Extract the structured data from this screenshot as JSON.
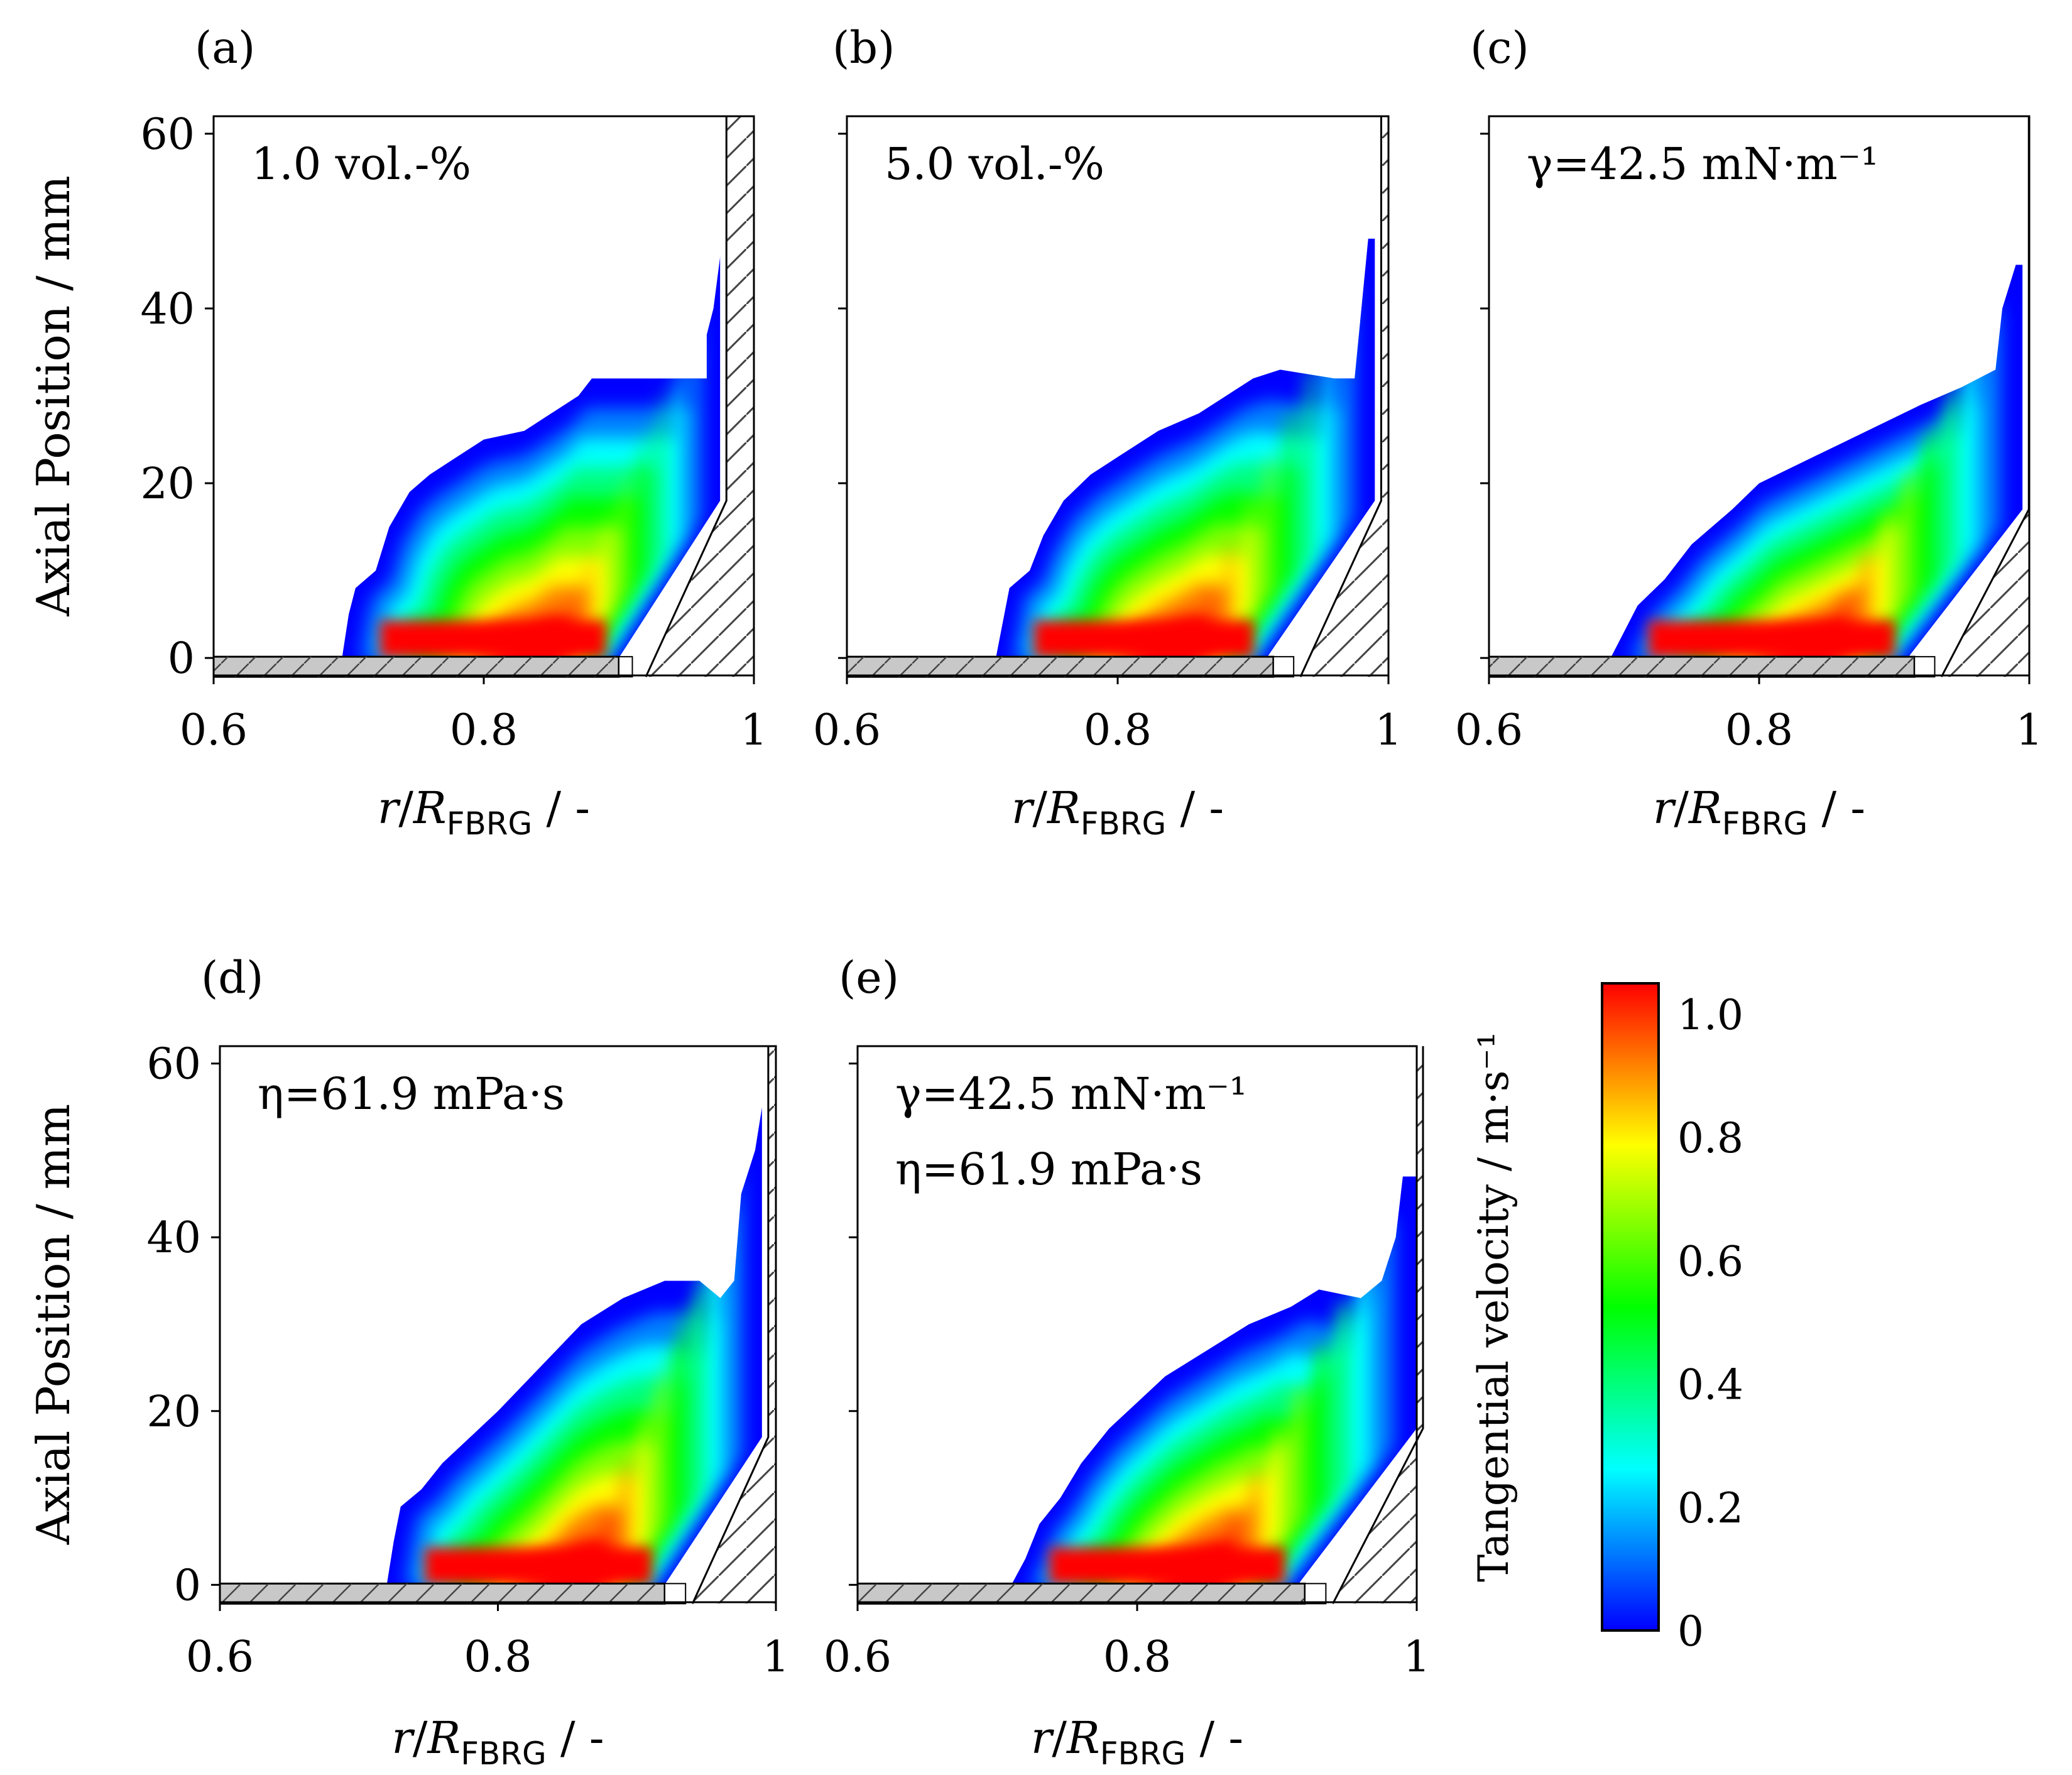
{
  "chart_data": [
    {
      "type": "heatmap",
      "panel_label": "(a)",
      "annotation": [
        "1.0 vol.-%"
      ],
      "ylabel": "Axial Position / mm",
      "xlabel_parts": {
        "italic_main": "r",
        "slash": "/",
        "italic_R": "R",
        "subscript": "FBRG",
        "suffix": " / -"
      },
      "xlim": [
        0.6,
        1.0
      ],
      "ylim": [
        -2,
        62
      ],
      "x_ticks": [
        {
          "v": 0.6,
          "label": "0.6"
        },
        {
          "v": 0.8,
          "label": "0.8"
        },
        {
          "v": 1.0,
          "label": "1"
        }
      ],
      "y_ticks": [
        {
          "v": 0,
          "label": "0"
        },
        {
          "v": 20,
          "label": "20"
        },
        {
          "v": 40,
          "label": "40"
        },
        {
          "v": 60,
          "label": "60"
        }
      ],
      "region": {
        "x_start": 0.695,
        "x_wall": 0.975,
        "bottom_peak_x": 0.9,
        "wall_base_y": 18,
        "top_profile": [
          [
            0.695,
            0
          ],
          [
            0.7,
            5
          ],
          [
            0.705,
            8
          ],
          [
            0.72,
            10
          ],
          [
            0.73,
            15
          ],
          [
            0.745,
            19
          ],
          [
            0.76,
            21
          ],
          [
            0.78,
            23
          ],
          [
            0.8,
            25
          ],
          [
            0.83,
            26
          ],
          [
            0.85,
            28
          ],
          [
            0.87,
            30
          ],
          [
            0.88,
            32
          ],
          [
            0.965,
            32
          ],
          [
            0.965,
            37
          ],
          [
            0.97,
            40
          ],
          [
            0.975,
            46
          ]
        ],
        "core_peak": [
          0.835,
          18
        ]
      },
      "ring_plate": {
        "x_end": 0.9,
        "gap_end": 0.91
      },
      "wall_lower_x": 0.92
    },
    {
      "type": "heatmap",
      "panel_label": "(b)",
      "annotation": [
        "5.0 vol.-%"
      ],
      "ylabel": "",
      "xlabel_parts": {
        "italic_main": "r",
        "slash": "/",
        "italic_R": "R",
        "subscript": "FBRG",
        "suffix": " / -"
      },
      "xlim": [
        0.6,
        1.0
      ],
      "ylim": [
        -2,
        62
      ],
      "x_ticks": [
        {
          "v": 0.6,
          "label": "0.6"
        },
        {
          "v": 0.8,
          "label": "0.8"
        },
        {
          "v": 1.0,
          "label": "1"
        }
      ],
      "y_ticks": [
        {
          "v": 0,
          "label": ""
        },
        {
          "v": 20,
          "label": ""
        },
        {
          "v": 40,
          "label": ""
        },
        {
          "v": 60,
          "label": ""
        }
      ],
      "region": {
        "x_start": 0.71,
        "x_wall": 0.99,
        "bottom_peak_x": 0.91,
        "wall_base_y": 18,
        "top_profile": [
          [
            0.71,
            0
          ],
          [
            0.715,
            4
          ],
          [
            0.72,
            8
          ],
          [
            0.735,
            10
          ],
          [
            0.745,
            14
          ],
          [
            0.76,
            18
          ],
          [
            0.78,
            21
          ],
          [
            0.8,
            23
          ],
          [
            0.83,
            26
          ],
          [
            0.86,
            28
          ],
          [
            0.88,
            30
          ],
          [
            0.9,
            32
          ],
          [
            0.92,
            33
          ],
          [
            0.96,
            32
          ],
          [
            0.975,
            32
          ],
          [
            0.98,
            40
          ],
          [
            0.985,
            48
          ],
          [
            0.99,
            48
          ]
        ],
        "core_peak": [
          0.835,
          18
        ]
      },
      "ring_plate": {
        "x_end": 0.915,
        "gap_end": 0.93
      },
      "wall_lower_x": 0.935
    },
    {
      "type": "heatmap",
      "panel_label": "(c)",
      "annotation": [
        "γ=42.5 mN·m⁻¹"
      ],
      "ylabel": "",
      "xlabel_parts": {
        "italic_main": "r",
        "slash": "/",
        "italic_R": "R",
        "subscript": "FBRG",
        "suffix": " / -"
      },
      "xlim": [
        0.6,
        1.0
      ],
      "ylim": [
        -2,
        62
      ],
      "x_ticks": [
        {
          "v": 0.6,
          "label": "0.6"
        },
        {
          "v": 0.8,
          "label": "0.8"
        },
        {
          "v": 1.0,
          "label": "1"
        }
      ],
      "y_ticks": [
        {
          "v": 0,
          "label": ""
        },
        {
          "v": 20,
          "label": ""
        },
        {
          "v": 40,
          "label": ""
        },
        {
          "v": 60,
          "label": ""
        }
      ],
      "region": {
        "x_start": 0.69,
        "x_wall": 0.995,
        "bottom_peak_x": 0.91,
        "wall_base_y": 17,
        "top_profile": [
          [
            0.69,
            0
          ],
          [
            0.7,
            3
          ],
          [
            0.71,
            6
          ],
          [
            0.73,
            9
          ],
          [
            0.75,
            13
          ],
          [
            0.78,
            17
          ],
          [
            0.8,
            20
          ],
          [
            0.84,
            23
          ],
          [
            0.88,
            26
          ],
          [
            0.92,
            29
          ],
          [
            0.95,
            31
          ],
          [
            0.975,
            33
          ],
          [
            0.98,
            40
          ],
          [
            0.99,
            45
          ],
          [
            0.995,
            45
          ]
        ],
        "core_peak": [
          0.83,
          18
        ]
      },
      "ring_plate": {
        "x_end": 0.915,
        "gap_end": 0.93
      },
      "wall_lower_x": 0.935
    },
    {
      "type": "heatmap",
      "panel_label": "(d)",
      "annotation": [
        "η=61.9 mPa·s"
      ],
      "ylabel": "Axial Position / mm",
      "xlabel_parts": {
        "italic_main": "r",
        "slash": "/",
        "italic_R": "R",
        "subscript": "FBRG",
        "suffix": " / -"
      },
      "xlim": [
        0.6,
        1.0
      ],
      "ylim": [
        -2,
        62
      ],
      "x_ticks": [
        {
          "v": 0.6,
          "label": "0.6"
        },
        {
          "v": 0.8,
          "label": "0.8"
        },
        {
          "v": 1.0,
          "label": "1"
        }
      ],
      "y_ticks": [
        {
          "v": 0,
          "label": "0"
        },
        {
          "v": 20,
          "label": "20"
        },
        {
          "v": 40,
          "label": "40"
        },
        {
          "v": 60,
          "label": "60"
        }
      ],
      "region": {
        "x_start": 0.72,
        "x_wall": 0.99,
        "bottom_peak_x": 0.92,
        "wall_base_y": 17,
        "top_profile": [
          [
            0.72,
            0
          ],
          [
            0.725,
            5
          ],
          [
            0.73,
            9
          ],
          [
            0.745,
            11
          ],
          [
            0.76,
            14
          ],
          [
            0.78,
            17
          ],
          [
            0.8,
            20
          ],
          [
            0.83,
            25
          ],
          [
            0.86,
            30
          ],
          [
            0.89,
            33
          ],
          [
            0.92,
            35
          ],
          [
            0.945,
            35
          ],
          [
            0.96,
            33
          ],
          [
            0.97,
            35
          ],
          [
            0.975,
            45
          ],
          [
            0.985,
            50
          ],
          [
            0.99,
            55
          ]
        ],
        "core_peak": [
          0.85,
          18
        ]
      },
      "ring_plate": {
        "x_end": 0.92,
        "gap_end": 0.935
      },
      "wall_lower_x": 0.94
    },
    {
      "type": "heatmap",
      "panel_label": "(e)",
      "annotation": [
        "γ=42.5 mN·m⁻¹",
        "η=61.9 mPa·s"
      ],
      "ylabel": "",
      "xlabel_parts": {
        "italic_main": "r",
        "slash": "/",
        "italic_R": "R",
        "subscript": "FBRG",
        "suffix": " / -"
      },
      "xlim": [
        0.6,
        1.0
      ],
      "ylim": [
        -2,
        62
      ],
      "x_ticks": [
        {
          "v": 0.6,
          "label": "0.6"
        },
        {
          "v": 0.8,
          "label": "0.8"
        },
        {
          "v": 1.0,
          "label": "1"
        }
      ],
      "y_ticks": [
        {
          "v": 0,
          "label": ""
        },
        {
          "v": 20,
          "label": ""
        },
        {
          "v": 40,
          "label": ""
        },
        {
          "v": 60,
          "label": ""
        }
      ],
      "region": {
        "x_start": 0.71,
        "x_wall": 1.0,
        "bottom_peak_x": 0.915,
        "wall_base_y": 18,
        "top_profile": [
          [
            0.71,
            0
          ],
          [
            0.72,
            3
          ],
          [
            0.73,
            7
          ],
          [
            0.745,
            10
          ],
          [
            0.76,
            14
          ],
          [
            0.78,
            18
          ],
          [
            0.8,
            21
          ],
          [
            0.82,
            24
          ],
          [
            0.85,
            27
          ],
          [
            0.88,
            30
          ],
          [
            0.91,
            32
          ],
          [
            0.93,
            34
          ],
          [
            0.96,
            33
          ],
          [
            0.975,
            35
          ],
          [
            0.985,
            40
          ],
          [
            0.99,
            47
          ],
          [
            1.0,
            47
          ]
        ],
        "core_peak": [
          0.835,
          17
        ]
      },
      "ring_plate": {
        "x_end": 0.92,
        "gap_end": 0.935
      },
      "wall_lower_x": 0.94
    }
  ],
  "colorbar": {
    "title": "Tangential velocity / m·s⁻¹",
    "min": 0,
    "max": 1.05,
    "ticks": [
      {
        "v": 0,
        "label": "0"
      },
      {
        "v": 0.2,
        "label": "0.2"
      },
      {
        "v": 0.4,
        "label": "0.4"
      },
      {
        "v": 0.6,
        "label": "0.6"
      },
      {
        "v": 0.8,
        "label": "0.8"
      },
      {
        "v": 1.0,
        "label": "1.0"
      }
    ],
    "colormap": [
      "#0000ff",
      "#0080ff",
      "#00ffff",
      "#00ff80",
      "#00ff00",
      "#80ff00",
      "#ffff00",
      "#ff8000",
      "#ff0000"
    ]
  },
  "colors": {
    "plate_fill": "#c8c8c8",
    "hatch": "#444444",
    "axis": "#000000"
  }
}
